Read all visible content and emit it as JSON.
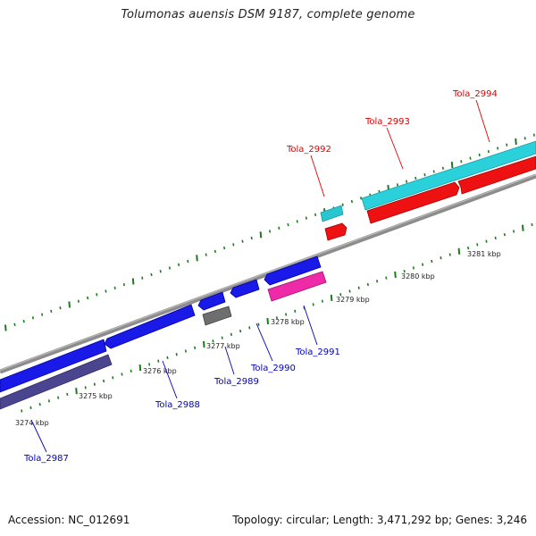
{
  "title": "Tolumonas auensis DSM 9187, complete genome",
  "footer": {
    "accession": "Accession: NC_012691",
    "summary": "Topology: circular; Length: 3,471,292 bp; Genes: 3,246"
  },
  "colors": {
    "backbone": "#8c8c8c",
    "ticks": "#1f7a1f",
    "label_forward": "#dd0000",
    "label_reverse": "#0000bb"
  },
  "scale_labels": [
    "3274 kbp",
    "3275 kbp",
    "3276 kbp",
    "3277 kbp",
    "3278 kbp",
    "3279 kbp",
    "3280 kbp",
    "3281 kbp"
  ],
  "genes": [
    {
      "name": "Tola_2987",
      "strand": "reverse"
    },
    {
      "name": "Tola_2988",
      "strand": "reverse"
    },
    {
      "name": "Tola_2989",
      "strand": "reverse"
    },
    {
      "name": "Tola_2990",
      "strand": "reverse"
    },
    {
      "name": "Tola_2991",
      "strand": "reverse"
    },
    {
      "name": "Tola_2992",
      "strand": "forward"
    },
    {
      "name": "Tola_2993",
      "strand": "forward"
    },
    {
      "name": "Tola_2994",
      "strand": "forward"
    }
  ]
}
